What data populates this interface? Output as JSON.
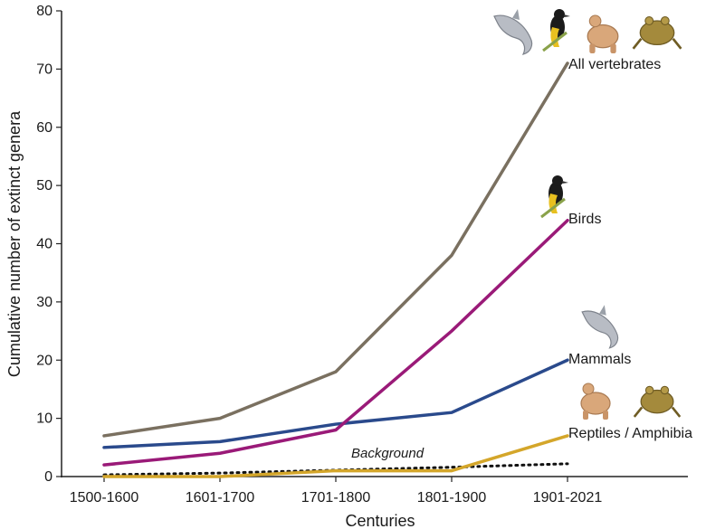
{
  "chart_data": {
    "type": "line",
    "xlabel": "Centuries",
    "ylabel": "Cumulative number of extinct genera",
    "categories": [
      "1500-1600",
      "1601-1700",
      "1701-1800",
      "1801-1900",
      "1901-2021"
    ],
    "ylim": [
      0,
      80
    ],
    "yticks": [
      0,
      10,
      20,
      30,
      40,
      50,
      60,
      70,
      80
    ],
    "grid": false,
    "legend": "inline-labels",
    "series": [
      {
        "name": "All vertebrates",
        "color": "#7a7060",
        "values": [
          7,
          10,
          18,
          38,
          71
        ],
        "icons": [
          "dolphin-icon",
          "bird-icon",
          "tortoise-icon",
          "frog-icon"
        ]
      },
      {
        "name": "Birds",
        "color": "#9a1a78",
        "values": [
          2,
          4,
          8,
          25,
          44
        ],
        "icons": [
          "bird-icon"
        ]
      },
      {
        "name": "Mammals",
        "color": "#2a4a8c",
        "values": [
          5,
          6,
          9,
          11,
          20
        ],
        "icons": [
          "dolphin-icon"
        ]
      },
      {
        "name": "Reptiles / Amphibia",
        "color": "#d4a62a",
        "values": [
          0,
          0,
          1,
          1,
          7
        ],
        "icons": [
          "tortoise-icon",
          "frog-icon"
        ]
      }
    ],
    "annotations": [
      {
        "text": "Background",
        "style": "dotted",
        "color": "#111111",
        "values": [
          0.3,
          0.6,
          1.1,
          1.6,
          2.2
        ]
      }
    ]
  }
}
